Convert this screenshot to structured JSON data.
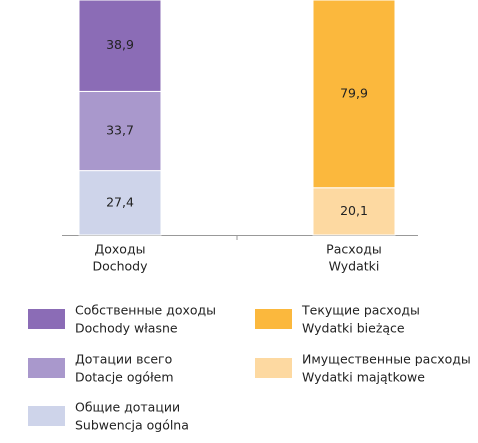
{
  "chart_data": {
    "type": "stacked_bar",
    "categories": [
      [
        "Доходы",
        "Dochody"
      ],
      [
        "Расходы",
        "Wydatki"
      ]
    ],
    "series": [
      {
        "name": [
          "Собственные доходы",
          "Dochody własne"
        ],
        "color": "#8b6cb6",
        "values": [
          38.9,
          null
        ],
        "value_labels": [
          "38,9",
          null
        ]
      },
      {
        "name": [
          "Дотации всего",
          "Dotacje ogółem"
        ],
        "color": "#a998cc",
        "values": [
          33.7,
          null
        ],
        "value_labels": [
          "33,7",
          null
        ]
      },
      {
        "name": [
          "Общие дотации",
          "Subwencja ogólna"
        ],
        "color": "#ced4ea",
        "values": [
          27.4,
          null
        ],
        "value_labels": [
          "27,4",
          null
        ]
      },
      {
        "name": [
          "Текущие расходы",
          "Wydatki bieżące"
        ],
        "color": "#fbb83d",
        "values": [
          null,
          79.9
        ],
        "value_labels": [
          null,
          "79,9"
        ]
      },
      {
        "name": [
          "Имущественные расходы",
          "Wydatki majątkowe"
        ],
        "color": "#fdd9a1",
        "values": [
          null,
          20.1
        ],
        "value_labels": [
          null,
          "20,1"
        ]
      }
    ],
    "ylim": [
      0,
      100
    ]
  }
}
